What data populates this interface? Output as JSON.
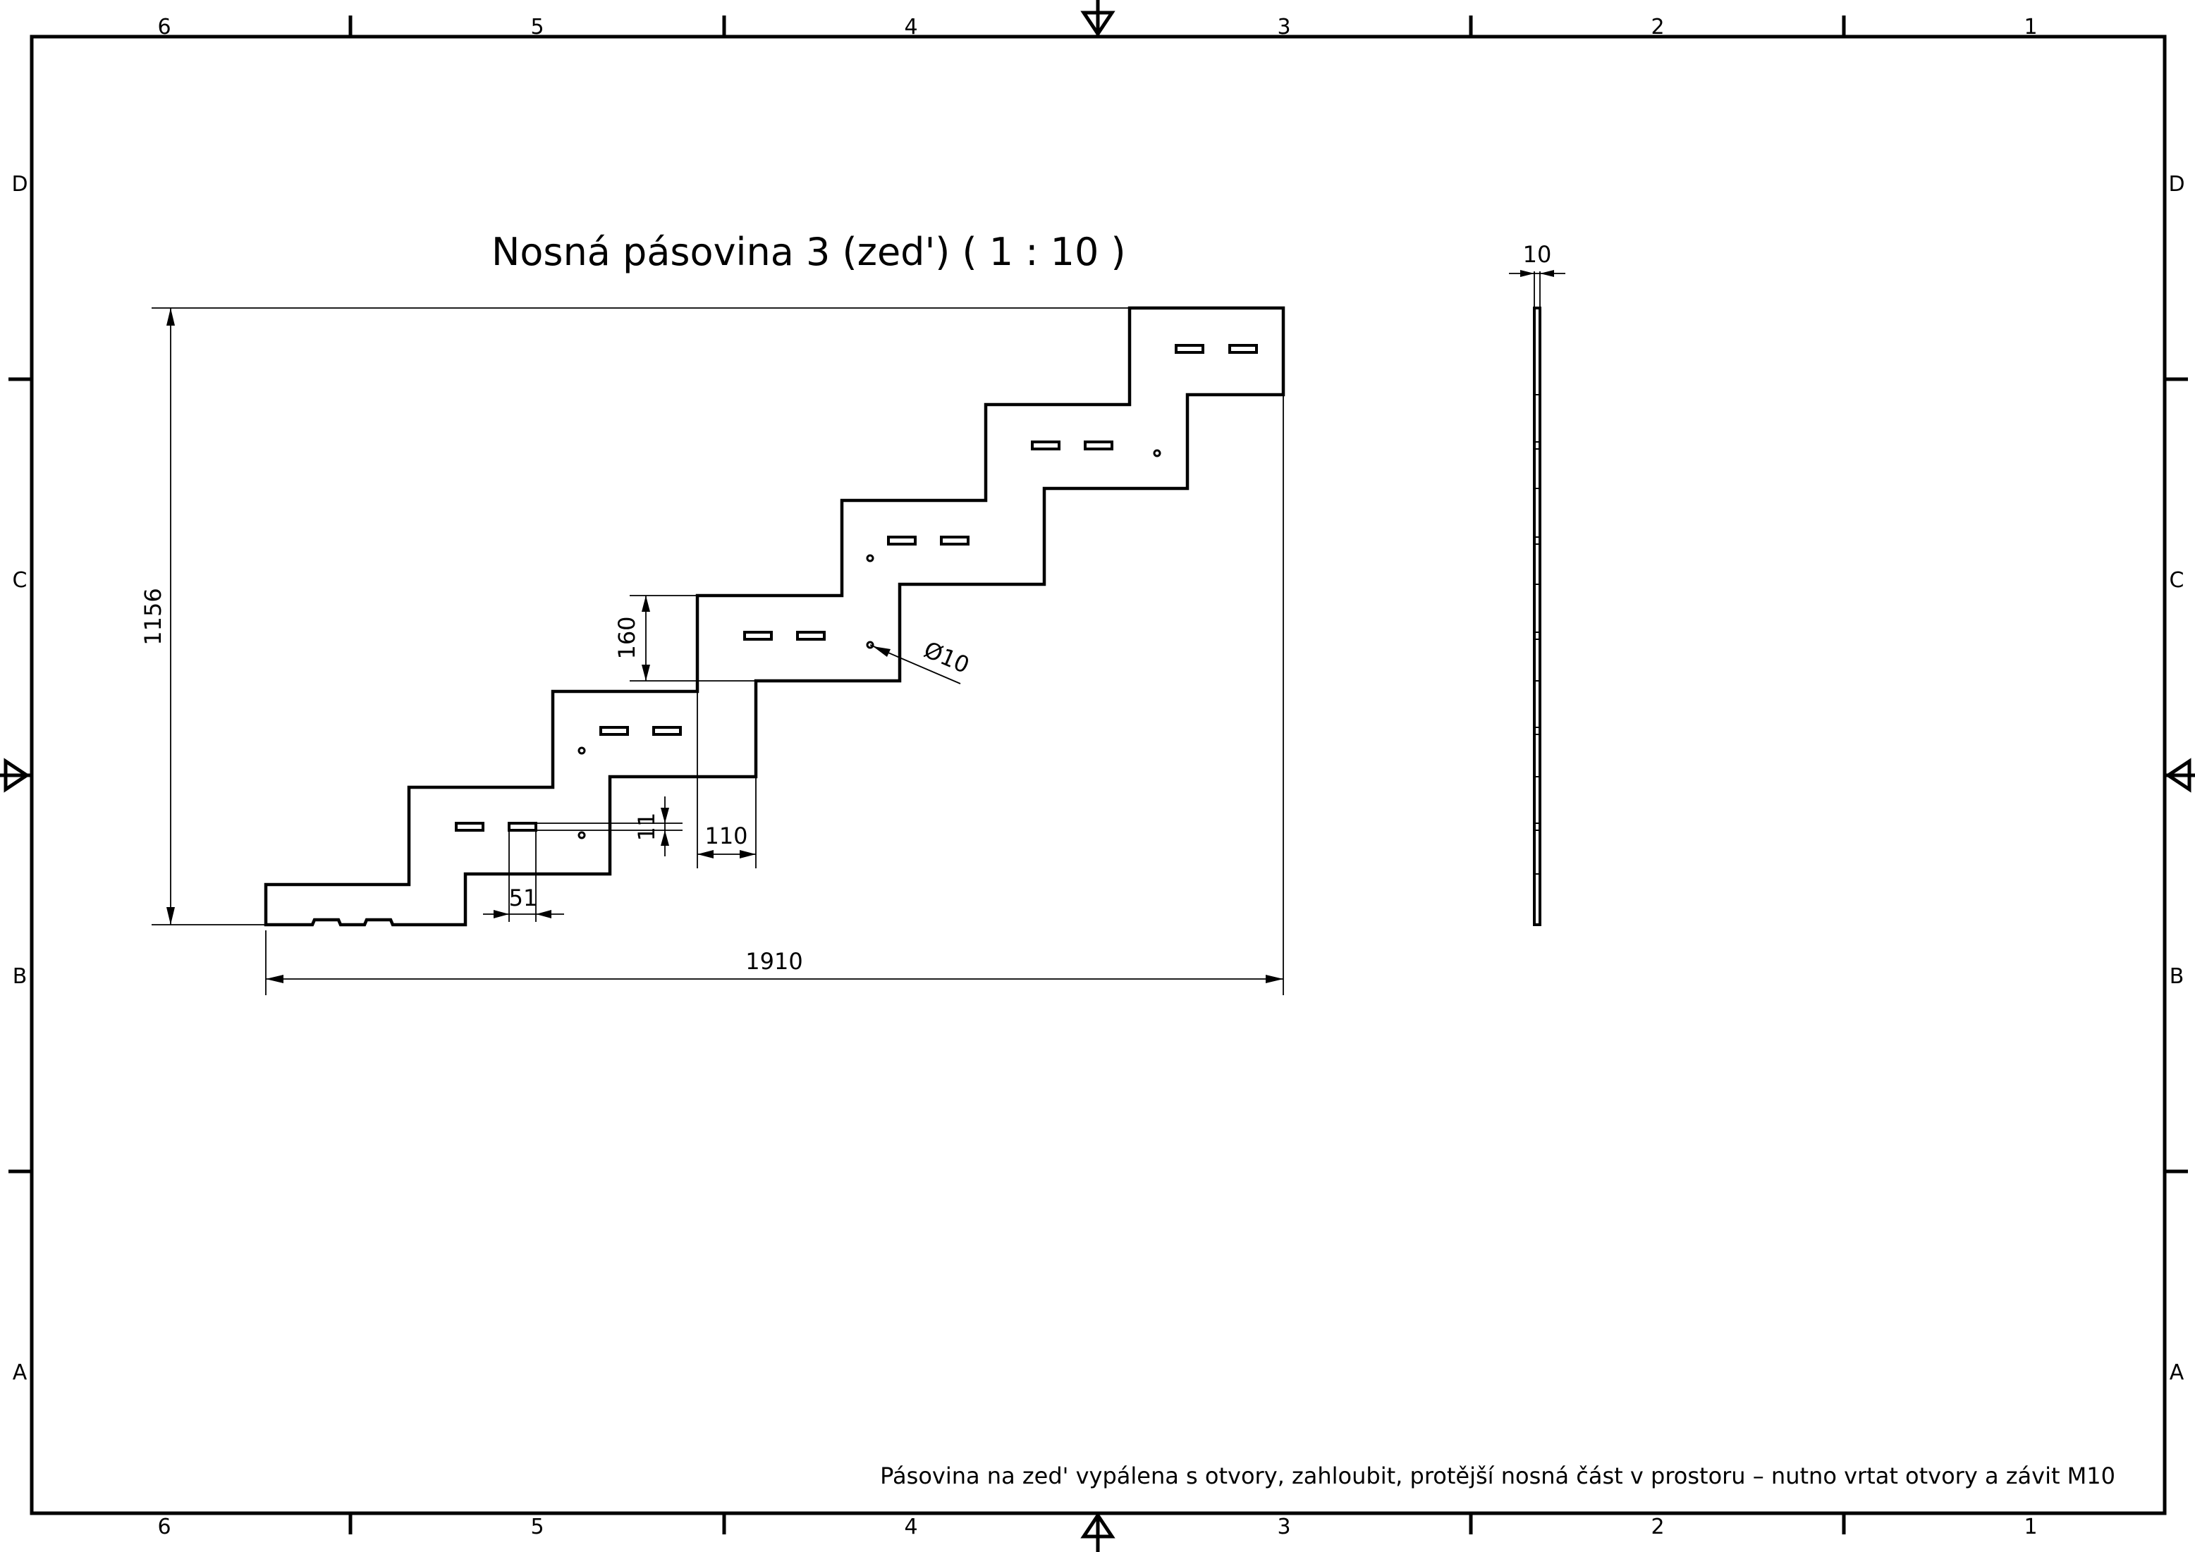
{
  "drawing": {
    "title": "Nosná pásovina 3 (zed') ( 1 : 10 )",
    "note": "Pásovina na zed' vypálena s otvory, zahloubit, protější nosná část v prostoru – nutno vrtat otvory a závit M10",
    "zones": {
      "columns": [
        "6",
        "5",
        "4",
        "3",
        "2",
        "1"
      ],
      "rows": [
        "D",
        "C",
        "B",
        "A"
      ]
    },
    "dimensions": {
      "total_height": "1156",
      "total_width": "1910",
      "step_height": "160",
      "step_depth": "110",
      "slot_width": "51",
      "slot_height": "11",
      "hole_diameter": "Ø10",
      "thickness": "10"
    }
  }
}
